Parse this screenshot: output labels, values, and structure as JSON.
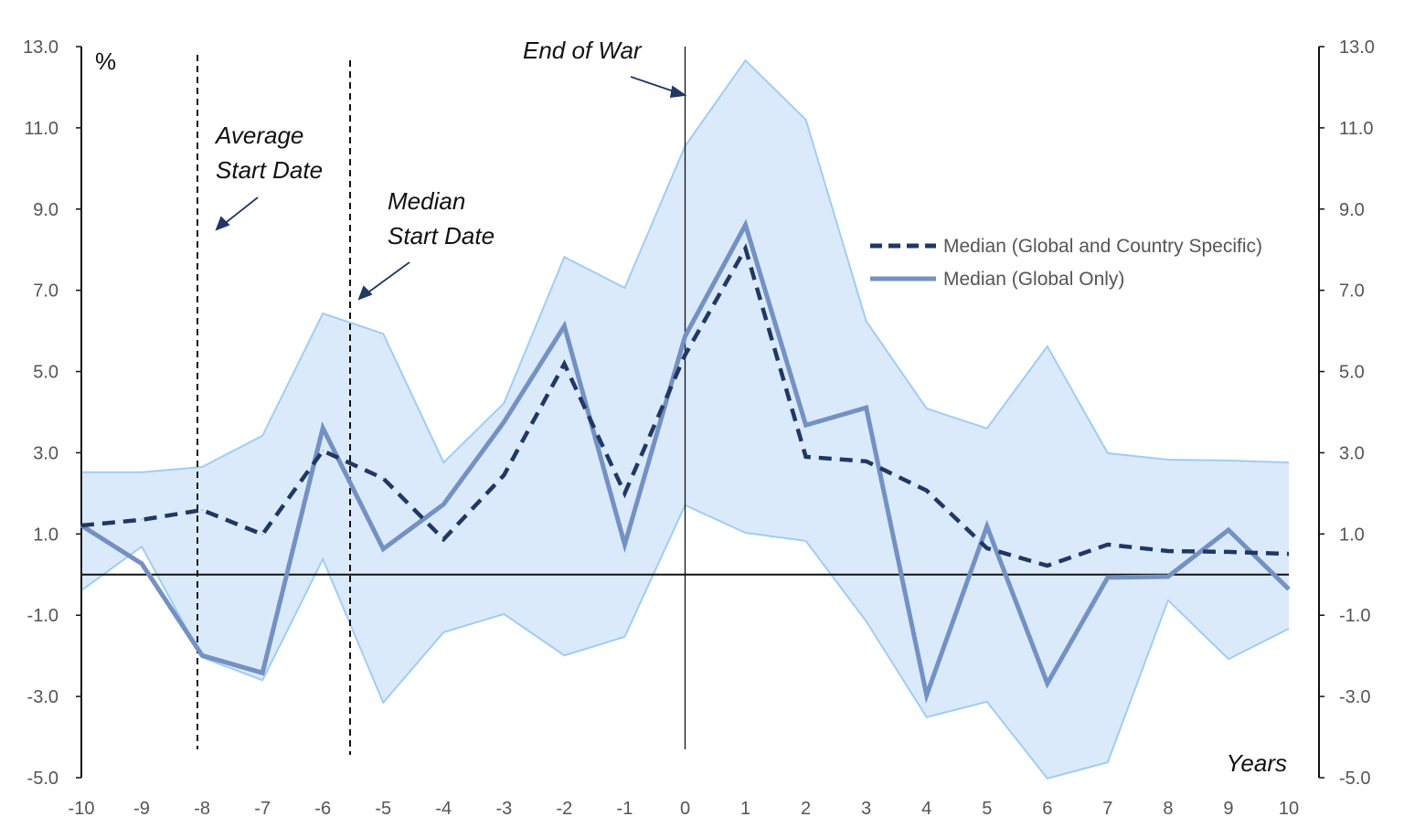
{
  "chart_data": {
    "type": "line",
    "xlabel": "Years",
    "ylabel": "%",
    "x": [
      -10,
      -9,
      -8,
      -7,
      -6,
      -5,
      -4,
      -3,
      -2,
      -1,
      0,
      1,
      2,
      3,
      4,
      5,
      6,
      7,
      8,
      9,
      10
    ],
    "xlim": [
      -10,
      10
    ],
    "ylim": [
      -5,
      13
    ],
    "y_ticks": [
      "13.0",
      "11.0",
      "9.0",
      "7.0",
      "5.0",
      "3.0",
      "1.0",
      "-1.0",
      "-3.0",
      "-5.0"
    ],
    "secondary_y_axis": true,
    "grid": false,
    "legend_position": "right",
    "series": [
      {
        "name": "Median (Global and Country Specific)",
        "style": "dashed",
        "color": "#1f3864",
        "values": [
          1.21,
          1.35,
          1.59,
          0.99,
          3.05,
          2.37,
          0.87,
          2.45,
          5.19,
          2.0,
          5.41,
          8.03,
          2.9,
          2.79,
          2.07,
          0.65,
          0.22,
          0.74,
          0.58,
          0.56,
          0.51
        ]
      },
      {
        "name": "Median (Global Only)",
        "style": "solid",
        "color": "#7391c3",
        "values": [
          1.21,
          0.27,
          -1.99,
          -2.42,
          3.61,
          0.63,
          1.73,
          3.76,
          6.12,
          0.74,
          5.87,
          8.61,
          3.68,
          4.11,
          -2.97,
          1.19,
          -2.68,
          -0.07,
          -0.05,
          1.1,
          -0.36
        ]
      }
    ],
    "band": {
      "fill": "#dbeafb",
      "edge": "#9fcdf5",
      "upper": [
        2.52,
        2.52,
        2.65,
        3.42,
        6.43,
        5.93,
        2.76,
        4.22,
        7.82,
        7.06,
        10.55,
        12.66,
        11.2,
        6.24,
        4.09,
        3.6,
        5.62,
        2.99,
        2.83,
        2.81,
        2.76
      ],
      "lower": [
        -0.39,
        0.69,
        -2.04,
        -2.6,
        0.38,
        -3.15,
        -1.42,
        -0.97,
        -1.99,
        -1.53,
        1.71,
        1.03,
        0.83,
        -1.15,
        -3.51,
        -3.13,
        -5.02,
        -4.62,
        -0.63,
        -2.08,
        -1.33
      ]
    },
    "annotations": [
      {
        "text_lines": [
          "Average",
          "Start Date"
        ],
        "x_line": -8
      },
      {
        "text_lines": [
          "Median",
          "Start Date"
        ],
        "x_line": -5.5
      },
      {
        "text_lines": [
          "End of War"
        ],
        "x_line": 0
      }
    ]
  }
}
